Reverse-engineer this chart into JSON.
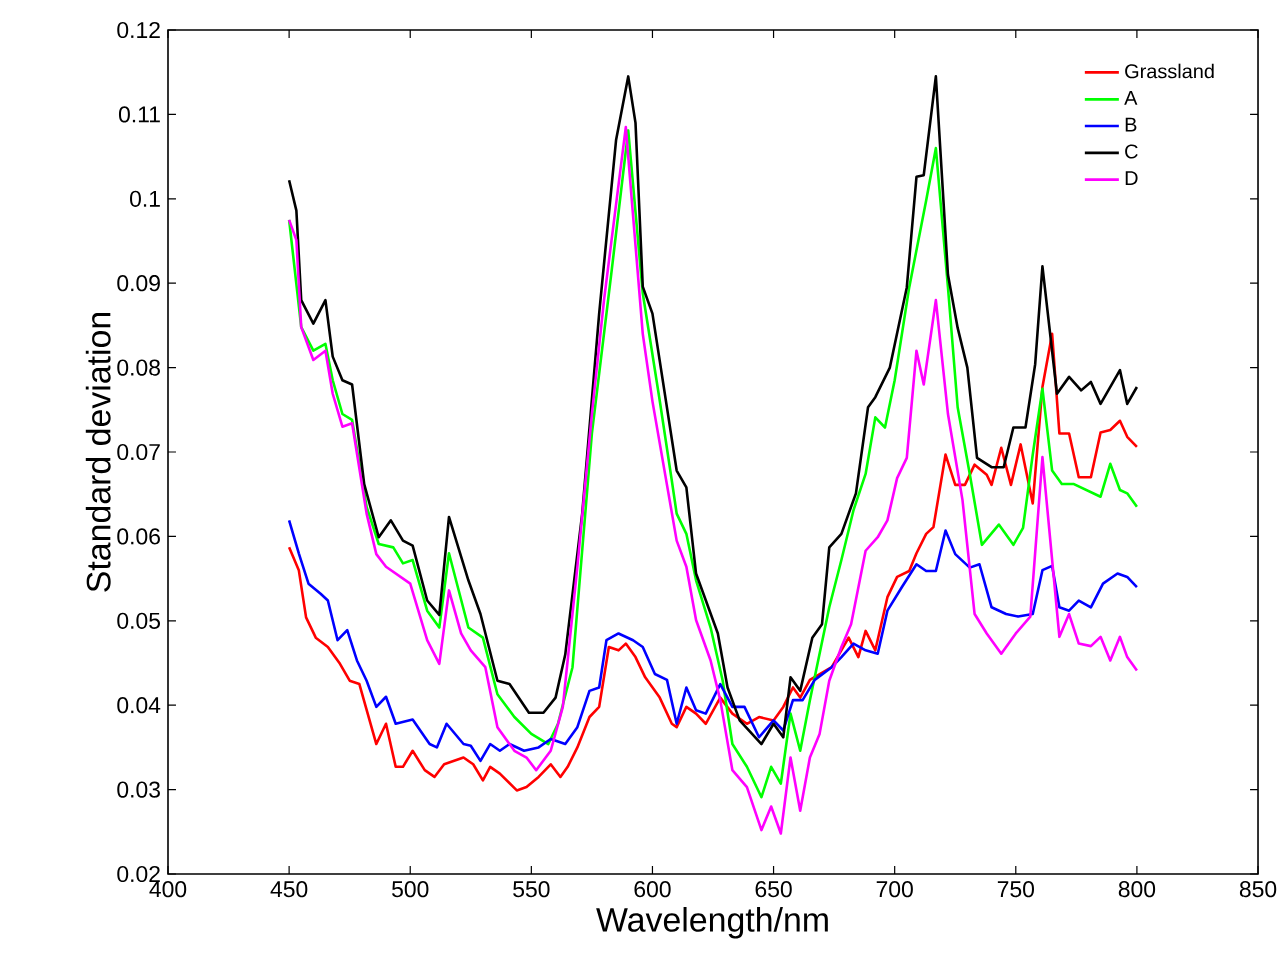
{
  "chart_data": {
    "type": "line",
    "xlabel": "Wavelength/nm",
    "ylabel": "Standard deviation",
    "xlim": [
      400,
      850
    ],
    "ylim": [
      0.02,
      0.12
    ],
    "xticks": [
      400,
      450,
      500,
      550,
      600,
      650,
      700,
      750,
      800,
      850
    ],
    "yticks": [
      0.02,
      0.03,
      0.04,
      0.05,
      0.06,
      0.07,
      0.08,
      0.09,
      0.1,
      0.11,
      0.12
    ],
    "legend": "top right",
    "grid": false,
    "marker": "none",
    "line_style": "solid",
    "series": [
      {
        "name": "Grassland",
        "color": "#ff0000",
        "x": [
          450,
          454,
          457,
          461,
          466,
          471,
          475,
          479,
          486,
          490,
          494,
          497,
          501,
          506,
          510,
          514,
          522,
          526,
          530,
          533,
          537,
          544,
          548,
          553,
          558,
          562,
          565,
          569,
          574,
          578,
          582,
          586,
          589,
          593,
          597,
          603,
          608,
          610,
          614,
          618,
          622,
          628,
          633,
          639,
          644,
          650,
          654,
          658,
          661,
          665,
          674,
          681,
          685,
          688,
          692,
          697,
          701,
          706,
          709,
          713,
          716,
          721,
          725,
          729,
          733,
          738,
          740,
          744,
          748,
          752,
          757,
          761,
          765,
          768,
          772,
          776,
          781,
          785,
          789,
          793,
          796,
          800
        ],
        "values": [
          0.0587,
          0.056,
          0.0504,
          0.048,
          0.0469,
          0.0449,
          0.0429,
          0.0425,
          0.0354,
          0.0378,
          0.0327,
          0.0327,
          0.0346,
          0.0323,
          0.0315,
          0.033,
          0.0338,
          0.033,
          0.0311,
          0.0327,
          0.0319,
          0.0299,
          0.0303,
          0.0315,
          0.033,
          0.0315,
          0.0327,
          0.035,
          0.0386,
          0.0398,
          0.0469,
          0.0465,
          0.0473,
          0.0457,
          0.0433,
          0.0409,
          0.0378,
          0.0374,
          0.0398,
          0.039,
          0.0378,
          0.0409,
          0.039,
          0.0378,
          0.0386,
          0.0382,
          0.0398,
          0.0421,
          0.0409,
          0.043,
          0.0445,
          0.048,
          0.0457,
          0.0488,
          0.0465,
          0.0528,
          0.0552,
          0.0559,
          0.058,
          0.0603,
          0.0611,
          0.0697,
          0.0661,
          0.0661,
          0.0685,
          0.0673,
          0.0661,
          0.0705,
          0.0661,
          0.0709,
          0.0639,
          0.0777,
          0.084,
          0.0722,
          0.0722,
          0.067,
          0.067,
          0.0723,
          0.0726,
          0.0737,
          0.0718,
          0.0706
        ]
      },
      {
        "name": "A",
        "color": "#00ff00",
        "x": [
          450,
          455,
          460,
          465,
          468,
          472,
          476,
          482,
          487,
          493,
          497,
          501,
          507,
          512,
          516,
          524,
          530,
          536,
          543,
          550,
          557,
          561,
          567,
          575,
          583,
          590,
          596,
          603,
          608,
          610,
          614,
          618,
          624,
          629,
          633,
          639,
          645,
          649,
          653,
          657,
          661,
          665,
          673,
          678,
          683,
          688,
          692,
          696,
          700,
          706,
          713,
          717,
          722,
          726,
          731,
          736,
          743,
          749,
          753,
          757,
          761,
          765,
          769,
          774,
          785,
          789,
          793,
          796,
          800
        ],
        "values": [
          0.0975,
          0.0848,
          0.082,
          0.0828,
          0.0785,
          0.0745,
          0.0738,
          0.0635,
          0.0591,
          0.0587,
          0.0568,
          0.0572,
          0.0512,
          0.0492,
          0.058,
          0.0492,
          0.048,
          0.0413,
          0.0386,
          0.0366,
          0.0354,
          0.0378,
          0.0445,
          0.0722,
          0.0911,
          0.1081,
          0.0888,
          0.0761,
          0.0666,
          0.0627,
          0.0603,
          0.0548,
          0.0492,
          0.0429,
          0.0354,
          0.0327,
          0.0291,
          0.0327,
          0.0307,
          0.039,
          0.0346,
          0.0406,
          0.0516,
          0.0572,
          0.0631,
          0.0674,
          0.0741,
          0.0729,
          0.0785,
          0.0895,
          0.0998,
          0.106,
          0.0895,
          0.0753,
          0.0674,
          0.059,
          0.0614,
          0.059,
          0.061,
          0.0697,
          0.0775,
          0.0678,
          0.0662,
          0.0662,
          0.0647,
          0.0686,
          0.0655,
          0.0651,
          0.0635
        ]
      },
      {
        "name": "B",
        "color": "#0000ff",
        "x": [
          450,
          454,
          458,
          463,
          466,
          470,
          474,
          478,
          482,
          486,
          490,
          494,
          501,
          508,
          511,
          515,
          522,
          525,
          529,
          533,
          537,
          541,
          547,
          553,
          558,
          564,
          569,
          574,
          578,
          581,
          586,
          592,
          596,
          601,
          606,
          610,
          614,
          618,
          622,
          628,
          633,
          638,
          644,
          650,
          654,
          658,
          662,
          667,
          674,
          678,
          683,
          688,
          693,
          697,
          703,
          709,
          713,
          717,
          721,
          725,
          731,
          735,
          740,
          746,
          751,
          757,
          761,
          765,
          768,
          772,
          776,
          781,
          786,
          792,
          796,
          800
        ],
        "values": [
          0.0619,
          0.058,
          0.0544,
          0.0532,
          0.0524,
          0.0477,
          0.0489,
          0.0453,
          0.0429,
          0.0398,
          0.041,
          0.0378,
          0.0383,
          0.0354,
          0.035,
          0.0378,
          0.0354,
          0.0352,
          0.0334,
          0.0354,
          0.0346,
          0.0354,
          0.0346,
          0.035,
          0.036,
          0.0354,
          0.0374,
          0.0417,
          0.0421,
          0.0477,
          0.0485,
          0.0477,
          0.0469,
          0.0437,
          0.043,
          0.0378,
          0.0421,
          0.0394,
          0.039,
          0.0425,
          0.0398,
          0.0398,
          0.0362,
          0.0382,
          0.037,
          0.0406,
          0.0406,
          0.043,
          0.0445,
          0.0457,
          0.0473,
          0.0465,
          0.0461,
          0.0512,
          0.054,
          0.0567,
          0.0559,
          0.0559,
          0.0607,
          0.0579,
          0.0563,
          0.0567,
          0.0516,
          0.0508,
          0.0505,
          0.0508,
          0.056,
          0.0565,
          0.0516,
          0.0512,
          0.0524,
          0.0516,
          0.0544,
          0.0556,
          0.0552,
          0.054
        ]
      },
      {
        "name": "C",
        "color": "#000000",
        "x": [
          450,
          453,
          455,
          460,
          465,
          468,
          472,
          476,
          481,
          487,
          492,
          497,
          501,
          507,
          512,
          516,
          524,
          529,
          536,
          541,
          549,
          555,
          560,
          564,
          571,
          578,
          585,
          590,
          593,
          596,
          600,
          610,
          614,
          618,
          627,
          631,
          636,
          645,
          650,
          654,
          657,
          661,
          666,
          670,
          673,
          678,
          684,
          689,
          692,
          698,
          705,
          709,
          712,
          717,
          722,
          726,
          730,
          734,
          740,
          745,
          749,
          754,
          758,
          761,
          767,
          772,
          777,
          781,
          785,
          793,
          796,
          800
        ],
        "values": [
          0.1022,
          0.0986,
          0.088,
          0.0852,
          0.088,
          0.0813,
          0.0785,
          0.078,
          0.0662,
          0.0599,
          0.0619,
          0.0595,
          0.0589,
          0.0524,
          0.0507,
          0.0623,
          0.0548,
          0.0508,
          0.0429,
          0.0425,
          0.0391,
          0.0391,
          0.0409,
          0.046,
          0.0627,
          0.0864,
          0.107,
          0.1145,
          0.109,
          0.0896,
          0.0864,
          0.0678,
          0.0658,
          0.0556,
          0.0485,
          0.0421,
          0.0382,
          0.0354,
          0.0378,
          0.0362,
          0.0433,
          0.0417,
          0.048,
          0.0496,
          0.0587,
          0.0603,
          0.0651,
          0.0753,
          0.0765,
          0.08,
          0.0895,
          0.1026,
          0.1028,
          0.1145,
          0.091,
          0.0847,
          0.08,
          0.0693,
          0.0682,
          0.0682,
          0.0729,
          0.0729,
          0.0804,
          0.092,
          0.0769,
          0.0789,
          0.0773,
          0.0783,
          0.0757,
          0.0797,
          0.0757,
          0.0777
        ]
      },
      {
        "name": "D",
        "color": "#ff00ff",
        "x": [
          450,
          453,
          455,
          460,
          465,
          468,
          472,
          476,
          482,
          486,
          490,
          496,
          500,
          507,
          512,
          516,
          521,
          525,
          531,
          536,
          543,
          548,
          552,
          558,
          563,
          569,
          575,
          580,
          589,
          596,
          600,
          610,
          614,
          618,
          624,
          628,
          633,
          639,
          645,
          649,
          653,
          657,
          661,
          665,
          669,
          673,
          678,
          682,
          688,
          693,
          697,
          701,
          705,
          709,
          712,
          717,
          722,
          728,
          733,
          738,
          744,
          750,
          756,
          761,
          768,
          772,
          776,
          781,
          785,
          789,
          793,
          796,
          800
        ],
        "values": [
          0.0975,
          0.0951,
          0.0848,
          0.0809,
          0.082,
          0.0769,
          0.073,
          0.0734,
          0.0627,
          0.0579,
          0.0564,
          0.0552,
          0.0544,
          0.0477,
          0.0449,
          0.0536,
          0.0485,
          0.0465,
          0.0445,
          0.0374,
          0.0346,
          0.0338,
          0.0323,
          0.0346,
          0.0398,
          0.0564,
          0.0745,
          0.088,
          0.1085,
          0.084,
          0.076,
          0.0595,
          0.0564,
          0.0501,
          0.0453,
          0.0406,
          0.0323,
          0.0303,
          0.0252,
          0.028,
          0.0248,
          0.0338,
          0.0275,
          0.0338,
          0.0366,
          0.0429,
          0.0469,
          0.0496,
          0.0583,
          0.0599,
          0.0619,
          0.0669,
          0.0693,
          0.082,
          0.078,
          0.088,
          0.0745,
          0.0643,
          0.0508,
          0.0485,
          0.0461,
          0.0485,
          0.0505,
          0.0694,
          0.0481,
          0.0508,
          0.0473,
          0.047,
          0.0481,
          0.0453,
          0.0481,
          0.0457,
          0.0441
        ]
      }
    ]
  }
}
